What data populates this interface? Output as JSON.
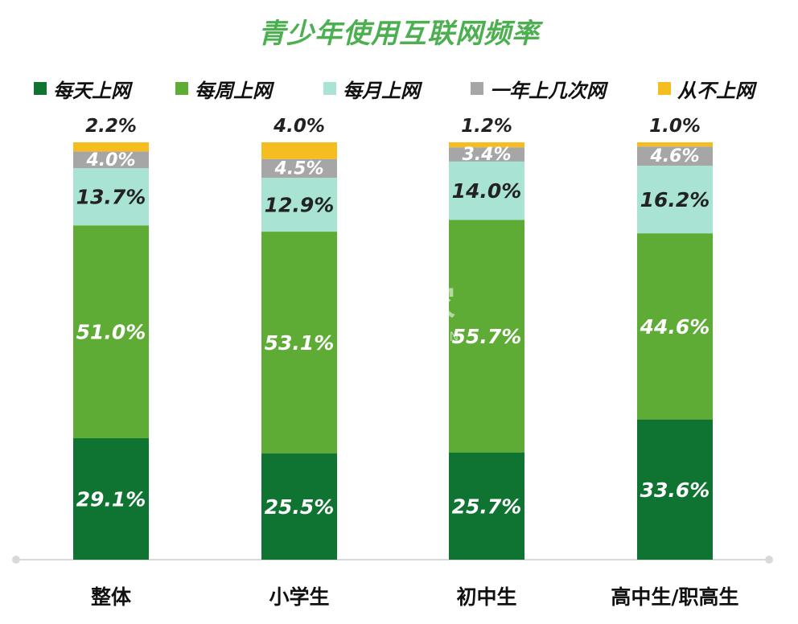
{
  "chart_data": {
    "type": "bar",
    "stacked": true,
    "title": "青少年使用互联网频率",
    "categories": [
      "整体",
      "小学生",
      "初中生",
      "高中生/职高生"
    ],
    "series": [
      {
        "name": "每天上网",
        "color": "#0f7331",
        "values": [
          29.1,
          25.5,
          25.7,
          33.6
        ],
        "labels": [
          "29.1%",
          "25.5%",
          "25.7%",
          "33.6%"
        ]
      },
      {
        "name": "每周上网",
        "color": "#5eab35",
        "values": [
          51.0,
          53.1,
          55.7,
          44.6
        ],
        "labels": [
          "51.0%",
          "53.1%",
          "55.7%",
          "44.6%"
        ]
      },
      {
        "name": "每月上网",
        "color": "#a8e3d3",
        "values": [
          13.7,
          12.9,
          14.0,
          16.2
        ],
        "labels": [
          "13.7%",
          "12.9%",
          "14.0%",
          "16.2%"
        ]
      },
      {
        "name": "一年上几次网",
        "color": "#a6a6a6",
        "values": [
          4.0,
          4.5,
          3.4,
          4.6
        ],
        "labels": [
          "4.0%",
          "4.5%",
          "3.4%",
          "4.6%"
        ]
      },
      {
        "name": "从不上网",
        "color": "#f5bd1f",
        "values": [
          2.2,
          4.0,
          1.2,
          1.0
        ],
        "labels": [
          "2.2%",
          "4.0%",
          "1.2%",
          "1.0%"
        ]
      }
    ],
    "ylim": [
      0,
      100
    ],
    "grid": false,
    "legend_position": "top"
  },
  "watermark": {
    "main": "并购家",
    "sub": "行业报告 IPOIPO.CN"
  },
  "colors": {
    "title": "#4caf50",
    "axis": "#d9d9d9",
    "label_dark": "#222222",
    "label_light": "#ffffff"
  }
}
